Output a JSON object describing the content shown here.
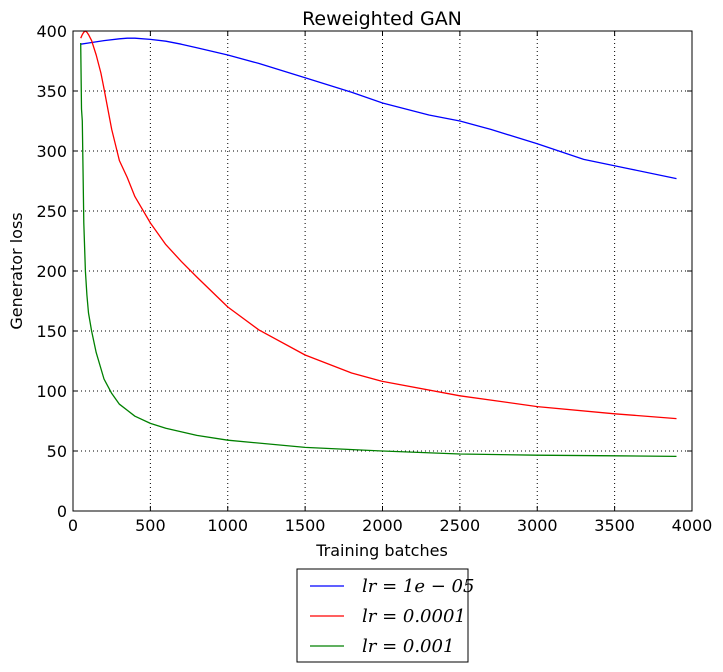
{
  "chart_data": {
    "type": "line",
    "title": "Reweighted GAN",
    "xlabel": "Training batches",
    "ylabel": "Generator loss",
    "xlim": [
      0,
      4000
    ],
    "ylim": [
      0,
      400
    ],
    "xticks": [
      0,
      500,
      1000,
      1500,
      2000,
      2500,
      3000,
      3500,
      4000
    ],
    "yticks": [
      0,
      50,
      100,
      150,
      200,
      250,
      300,
      350,
      400
    ],
    "grid": true,
    "legend_position": "bottom-center, below plot",
    "series": [
      {
        "name": "lr = 1e − 05",
        "color": "#0000ff",
        "x": [
          50,
          100,
          200,
          300,
          350,
          400,
          500,
          600,
          700,
          800,
          1000,
          1200,
          1500,
          1800,
          2000,
          2300,
          2500,
          2700,
          3000,
          3300,
          3600,
          3900
        ],
        "y": [
          389,
          390,
          392,
          393.5,
          394,
          394,
          393,
          391.5,
          389,
          386,
          380,
          373,
          361,
          349,
          340,
          330,
          325,
          318,
          306,
          293,
          285,
          277
        ]
      },
      {
        "name": "lr = 0.0001",
        "color": "#ff0000",
        "x": [
          50,
          60,
          70,
          80,
          90,
          100,
          120,
          150,
          180,
          200,
          250,
          300,
          350,
          400,
          500,
          600,
          700,
          800,
          1000,
          1200,
          1500,
          1800,
          2000,
          2500,
          3000,
          3500,
          3900
        ],
        "y": [
          394,
          397,
          399,
          400,
          399,
          397,
          392,
          380,
          365,
          352,
          318,
          292,
          278,
          262,
          240,
          222,
          208,
          195,
          170,
          151,
          130,
          115,
          108,
          96,
          87,
          81,
          77
        ]
      },
      {
        "name": "lr = 0.001",
        "color": "#008000",
        "x": [
          50,
          55,
          60,
          65,
          70,
          80,
          90,
          100,
          120,
          150,
          200,
          250,
          300,
          400,
          500,
          600,
          800,
          1000,
          1500,
          2000,
          2500,
          3000,
          3500,
          3900
        ],
        "y": [
          390,
          335,
          325,
          280,
          240,
          200,
          180,
          165,
          150,
          132,
          110,
          98,
          89,
          79,
          73,
          69,
          63,
          59,
          53,
          50,
          47.5,
          46.5,
          46,
          45.5
        ]
      }
    ]
  }
}
